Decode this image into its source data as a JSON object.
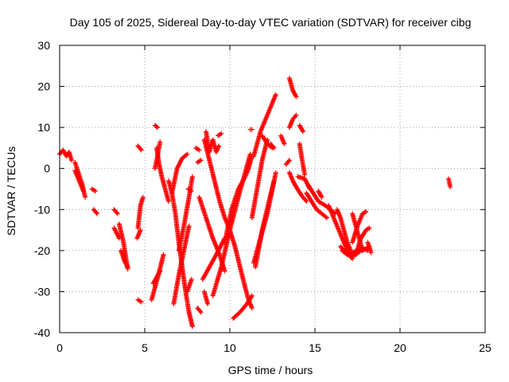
{
  "chart_data": {
    "type": "scatter",
    "title": "Day 105 of 2025, Sidereal Day-to-day VTEC variation (SDTVAR) for receiver cibg",
    "xlabel": "GPS time / hours",
    "ylabel": "SDTVAR / TECUs",
    "xlim": [
      0,
      25
    ],
    "ylim": [
      -40,
      30
    ],
    "xticks": [
      0,
      5,
      10,
      15,
      20,
      25
    ],
    "yticks": [
      -40,
      -30,
      -20,
      -10,
      0,
      10,
      20,
      30
    ],
    "xtick_labels": [
      "0",
      "5",
      "10",
      "15",
      "20",
      "25"
    ],
    "ytick_labels": [
      "-40",
      "-30",
      "-20",
      "-10",
      "0",
      "10",
      "20",
      "30"
    ],
    "grid": true,
    "marker": "+",
    "marker_color": "#ff0000",
    "tracks": [
      {
        "points": [
          [
            0.0,
            3.5
          ],
          [
            0.2,
            4.5
          ],
          [
            0.4,
            3.0
          ],
          [
            0.55,
            4.0
          ],
          [
            0.7,
            2.0
          ]
        ]
      },
      {
        "points": [
          [
            0.9,
            1.5
          ],
          [
            1.1,
            -1.0
          ],
          [
            1.3,
            -3.5
          ],
          [
            1.5,
            -7.0
          ]
        ]
      },
      {
        "points": [
          [
            0.9,
            -0.5
          ],
          [
            1.15,
            -3.0
          ],
          [
            1.4,
            -5.5
          ]
        ]
      },
      {
        "points": [
          [
            1.9,
            -5.0
          ],
          [
            2.1,
            -5.5
          ]
        ]
      },
      {
        "points": [
          [
            2.0,
            -10.0
          ],
          [
            2.2,
            -11.0
          ]
        ]
      },
      {
        "points": [
          [
            3.2,
            -10.0
          ],
          [
            3.4,
            -11.0
          ]
        ]
      },
      {
        "points": [
          [
            3.2,
            -14.5
          ],
          [
            3.5,
            -17.0
          ]
        ]
      },
      {
        "points": [
          [
            3.5,
            -13.5
          ],
          [
            3.75,
            -18.0
          ],
          [
            4.0,
            -24.5
          ]
        ]
      },
      {
        "points": [
          [
            3.6,
            -20.0
          ],
          [
            3.8,
            -22.5
          ],
          [
            4.0,
            -24.0
          ]
        ]
      },
      {
        "points": [
          [
            4.6,
            -14.5
          ],
          [
            4.75,
            -9.0
          ],
          [
            4.9,
            -7.0
          ]
        ]
      },
      {
        "points": [
          [
            4.55,
            -17.0
          ],
          [
            4.75,
            -15.0
          ]
        ]
      },
      {
        "points": [
          [
            4.6,
            -32.0
          ],
          [
            4.8,
            -32.5
          ]
        ]
      },
      {
        "points": [
          [
            4.6,
            5.5
          ],
          [
            4.8,
            4.5
          ]
        ]
      },
      {
        "points": [
          [
            5.4,
            -32.0
          ],
          [
            5.6,
            -29.0
          ],
          [
            5.8,
            -26.0
          ],
          [
            6.1,
            -21.0
          ]
        ]
      },
      {
        "points": [
          [
            5.5,
            -28.0
          ],
          [
            5.7,
            -26.5
          ],
          [
            5.9,
            -25.0
          ]
        ]
      },
      {
        "points": [
          [
            5.6,
            10.5
          ],
          [
            5.75,
            10.0
          ]
        ]
      },
      {
        "points": [
          [
            5.6,
            0.0
          ],
          [
            5.75,
            3.0
          ],
          [
            5.9,
            6.5
          ]
        ]
      },
      {
        "points": [
          [
            5.7,
            5.0
          ],
          [
            5.85,
            1.0
          ],
          [
            6.0,
            -2.0
          ],
          [
            6.2,
            -5.0
          ],
          [
            6.4,
            -8.0
          ]
        ]
      },
      {
        "points": [
          [
            6.4,
            -3.0
          ],
          [
            6.6,
            -6.0
          ],
          [
            6.8,
            -11.0
          ],
          [
            7.0,
            -18.0
          ],
          [
            7.2,
            -24.0
          ],
          [
            7.4,
            -30.0
          ],
          [
            7.6,
            -35.0
          ],
          [
            7.8,
            -38.5
          ]
        ]
      },
      {
        "points": [
          [
            6.6,
            -6.0
          ],
          [
            6.9,
            0.0
          ],
          [
            7.2,
            2.5
          ],
          [
            7.5,
            3.5
          ]
        ]
      },
      {
        "points": [
          [
            7.0,
            -20.0
          ],
          [
            7.3,
            -14.0
          ],
          [
            7.6,
            -7.0
          ],
          [
            7.8,
            -2.0
          ]
        ]
      },
      {
        "points": [
          [
            6.7,
            -33.0
          ],
          [
            7.0,
            -26.0
          ],
          [
            7.3,
            -20.0
          ],
          [
            7.6,
            -14.0
          ]
        ]
      },
      {
        "points": [
          [
            7.5,
            -30.0
          ],
          [
            7.75,
            -27.0
          ]
        ]
      },
      {
        "points": [
          [
            7.55,
            -5.0
          ],
          [
            7.75,
            -5.5
          ]
        ]
      },
      {
        "points": [
          [
            8.1,
            -34.0
          ],
          [
            8.3,
            -35.0
          ]
        ]
      },
      {
        "points": [
          [
            8.0,
            5.0
          ],
          [
            8.2,
            4.5
          ]
        ]
      },
      {
        "points": [
          [
            8.1,
            1.5
          ],
          [
            8.3,
            2.0
          ]
        ]
      },
      {
        "points": [
          [
            8.4,
            -27.0
          ],
          [
            8.8,
            -24.0
          ],
          [
            9.2,
            -21.0
          ],
          [
            9.7,
            -17.0
          ]
        ]
      },
      {
        "points": [
          [
            8.6,
            9.0
          ],
          [
            8.8,
            4.0
          ],
          [
            9.0,
            7.0
          ],
          [
            9.2,
            4.0
          ],
          [
            9.35,
            5.5
          ]
        ]
      },
      {
        "points": [
          [
            9.3,
            8.0
          ],
          [
            9.5,
            8.5
          ]
        ]
      },
      {
        "points": [
          [
            8.5,
            -30.0
          ],
          [
            8.7,
            -33.0
          ]
        ]
      },
      {
        "points": [
          [
            8.5,
            7.0
          ],
          [
            8.8,
            2.0
          ],
          [
            9.1,
            -3.0
          ],
          [
            9.4,
            -8.0
          ],
          [
            9.7,
            -12.0
          ],
          [
            10.0,
            -15.0
          ],
          [
            10.3,
            -19.0
          ],
          [
            10.6,
            -24.0
          ],
          [
            10.9,
            -29.0
          ],
          [
            11.1,
            -32.0
          ],
          [
            11.3,
            -34.0
          ]
        ]
      },
      {
        "points": [
          [
            8.2,
            -7.0
          ],
          [
            8.6,
            -12.0
          ],
          [
            9.0,
            -17.0
          ],
          [
            9.4,
            -21.0
          ],
          [
            9.7,
            -25.0
          ]
        ]
      },
      {
        "points": [
          [
            9.7,
            -18.0
          ],
          [
            10.1,
            -10.0
          ],
          [
            10.5,
            -5.0
          ],
          [
            10.9,
            -2.0
          ],
          [
            11.1,
            0.0
          ],
          [
            11.3,
            3.0
          ]
        ]
      },
      {
        "points": [
          [
            9.0,
            -31.0
          ],
          [
            9.5,
            -24.0
          ],
          [
            10.0,
            -15.0
          ],
          [
            10.5,
            -7.0
          ],
          [
            10.9,
            -1.0
          ],
          [
            11.2,
            3.5
          ]
        ]
      },
      {
        "points": [
          [
            10.2,
            -36.5
          ],
          [
            10.6,
            -35.0
          ],
          [
            11.0,
            -33.0
          ],
          [
            11.3,
            -31.0
          ]
        ]
      },
      {
        "points": [
          [
            11.2,
            9.5
          ],
          [
            11.3,
            9.5
          ]
        ]
      },
      {
        "points": [
          [
            11.4,
            3.0
          ],
          [
            11.8,
            9.0
          ],
          [
            12.2,
            13.0
          ],
          [
            12.5,
            16.0
          ],
          [
            12.7,
            18.0
          ]
        ]
      },
      {
        "points": [
          [
            11.4,
            -23.0
          ],
          [
            11.8,
            -17.0
          ],
          [
            12.2,
            -11.0
          ],
          [
            12.5,
            -5.0
          ],
          [
            12.7,
            -1.0
          ]
        ]
      },
      {
        "points": [
          [
            11.3,
            -12.0
          ],
          [
            11.6,
            -5.0
          ],
          [
            11.9,
            2.0
          ],
          [
            12.2,
            7.0
          ]
        ]
      },
      {
        "points": [
          [
            11.5,
            -24.0
          ],
          [
            11.9,
            -15.0
          ],
          [
            12.3,
            -8.0
          ],
          [
            12.6,
            -3.0
          ]
        ]
      },
      {
        "points": [
          [
            11.9,
            8.0
          ],
          [
            12.2,
            6.0
          ],
          [
            12.5,
            5.0
          ]
        ]
      },
      {
        "points": [
          [
            12.4,
            6.0
          ],
          [
            12.6,
            5.0
          ]
        ]
      },
      {
        "points": [
          [
            13.0,
            8.0
          ],
          [
            13.2,
            6.0
          ]
        ]
      },
      {
        "points": [
          [
            13.5,
            22.0
          ],
          [
            13.7,
            19.0
          ],
          [
            13.9,
            17.5
          ]
        ]
      },
      {
        "points": [
          [
            13.5,
            10.0
          ],
          [
            13.7,
            12.0
          ],
          [
            13.9,
            13.0
          ]
        ]
      },
      {
        "points": [
          [
            13.3,
            1.0
          ],
          [
            13.5,
            2.0
          ]
        ]
      },
      {
        "points": [
          [
            14.1,
            10.5
          ],
          [
            14.3,
            9.0
          ]
        ]
      },
      {
        "points": [
          [
            14.1,
            6.0
          ],
          [
            14.25,
            2.0
          ],
          [
            14.4,
            -1.5
          ]
        ]
      },
      {
        "points": [
          [
            14.0,
            -2.0
          ],
          [
            14.4,
            -2.5
          ],
          [
            14.7,
            -5.0
          ]
        ]
      },
      {
        "points": [
          [
            13.5,
            -1.0
          ],
          [
            13.7,
            -3.0
          ],
          [
            13.9,
            -4.5
          ],
          [
            14.2,
            -6.5
          ],
          [
            14.5,
            -8.0
          ]
        ]
      },
      {
        "points": [
          [
            14.6,
            -4.0
          ],
          [
            14.9,
            -6.0
          ],
          [
            15.2,
            -8.0
          ],
          [
            15.6,
            -9.0
          ],
          [
            15.9,
            -10.0
          ],
          [
            16.2,
            -11.0
          ]
        ]
      },
      {
        "points": [
          [
            14.5,
            -6.0
          ],
          [
            14.8,
            -8.0
          ],
          [
            15.1,
            -10.0
          ],
          [
            15.4,
            -11.0
          ],
          [
            15.7,
            -12.0
          ]
        ]
      },
      {
        "points": [
          [
            15.2,
            -5.5
          ],
          [
            15.4,
            -7.0
          ]
        ]
      },
      {
        "points": [
          [
            15.8,
            -9.0
          ],
          [
            16.0,
            -11.0
          ],
          [
            16.2,
            -13.0
          ],
          [
            16.4,
            -15.0
          ],
          [
            16.6,
            -17.0
          ],
          [
            16.8,
            -19.0
          ],
          [
            17.0,
            -21.0
          ],
          [
            17.2,
            -22.0
          ]
        ]
      },
      {
        "points": [
          [
            16.3,
            -10.0
          ],
          [
            16.5,
            -12.0
          ],
          [
            16.7,
            -15.0
          ],
          [
            16.9,
            -18.0
          ],
          [
            17.1,
            -20.0
          ]
        ]
      },
      {
        "points": [
          [
            16.5,
            -19.0
          ],
          [
            16.8,
            -20.5
          ],
          [
            17.1,
            -21.5
          ],
          [
            17.4,
            -21.0
          ],
          [
            17.7,
            -20.0
          ],
          [
            18.0,
            -19.5
          ],
          [
            18.2,
            -19.0
          ]
        ]
      },
      {
        "points": [
          [
            16.6,
            -20.0
          ],
          [
            16.9,
            -21.0
          ],
          [
            17.2,
            -20.5
          ],
          [
            17.5,
            -20.0
          ],
          [
            17.8,
            -19.5
          ],
          [
            18.1,
            -20.0
          ]
        ]
      },
      {
        "points": [
          [
            17.2,
            -11.0
          ],
          [
            17.4,
            -14.0
          ],
          [
            17.6,
            -17.0
          ],
          [
            17.8,
            -20.0
          ]
        ]
      },
      {
        "points": [
          [
            17.2,
            -18.0
          ],
          [
            17.5,
            -14.0
          ],
          [
            17.8,
            -11.0
          ],
          [
            18.0,
            -10.5
          ]
        ]
      },
      {
        "points": [
          [
            17.4,
            -21.0
          ],
          [
            17.7,
            -17.0
          ],
          [
            18.0,
            -15.0
          ],
          [
            18.2,
            -14.5
          ]
        ]
      },
      {
        "points": [
          [
            18.1,
            -18.0
          ],
          [
            18.3,
            -20.5
          ]
        ]
      },
      {
        "points": [
          [
            22.85,
            -2.5
          ],
          [
            22.9,
            -3.5
          ],
          [
            22.95,
            -4.5
          ]
        ]
      }
    ]
  }
}
